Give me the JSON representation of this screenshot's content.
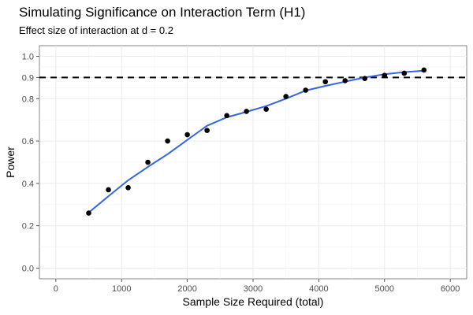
{
  "chart_data": {
    "type": "scatter",
    "title": "Simulating Significance on Interaction Term (H1)",
    "subtitle": "Effect size of interaction at d = 0.2",
    "xlabel": "Sample Size Required (total)",
    "ylabel": "Power",
    "xlim": [
      -250,
      6250
    ],
    "ylim": [
      -0.05,
      1.05
    ],
    "x_ticks": [
      0,
      1000,
      2000,
      3000,
      4000,
      5000,
      6000
    ],
    "y_ticks": [
      0.0,
      0.2,
      0.4,
      0.6,
      0.8,
      0.9,
      1.0
    ],
    "y_tick_labels": [
      "0.0",
      "0.2",
      "0.4",
      "0.6",
      "0.8",
      "0.9",
      "1.0"
    ],
    "grid": true,
    "reference_line": {
      "y": 0.9,
      "style": "dashed",
      "color": "#000000"
    },
    "series": [
      {
        "type": "scatter",
        "color": "#000000",
        "x": [
          500,
          800,
          1100,
          1400,
          1700,
          2000,
          2300,
          2600,
          2900,
          3200,
          3500,
          3800,
          4100,
          4400,
          4700,
          5000,
          5300,
          5600
        ],
        "y": [
          0.26,
          0.37,
          0.38,
          0.5,
          0.6,
          0.63,
          0.65,
          0.72,
          0.74,
          0.75,
          0.81,
          0.84,
          0.88,
          0.885,
          0.895,
          0.91,
          0.92,
          0.935
        ]
      },
      {
        "type": "line",
        "color": "#3366e0",
        "x": [
          500,
          800,
          1100,
          1400,
          1700,
          2000,
          2300,
          2600,
          2900,
          3200,
          3500,
          3800,
          4100,
          4400,
          4700,
          5000,
          5300,
          5600
        ],
        "y": [
          0.262,
          0.34,
          0.415,
          0.478,
          0.538,
          0.605,
          0.672,
          0.712,
          0.738,
          0.765,
          0.8,
          0.838,
          0.86,
          0.88,
          0.9,
          0.915,
          0.925,
          0.932
        ]
      }
    ]
  }
}
